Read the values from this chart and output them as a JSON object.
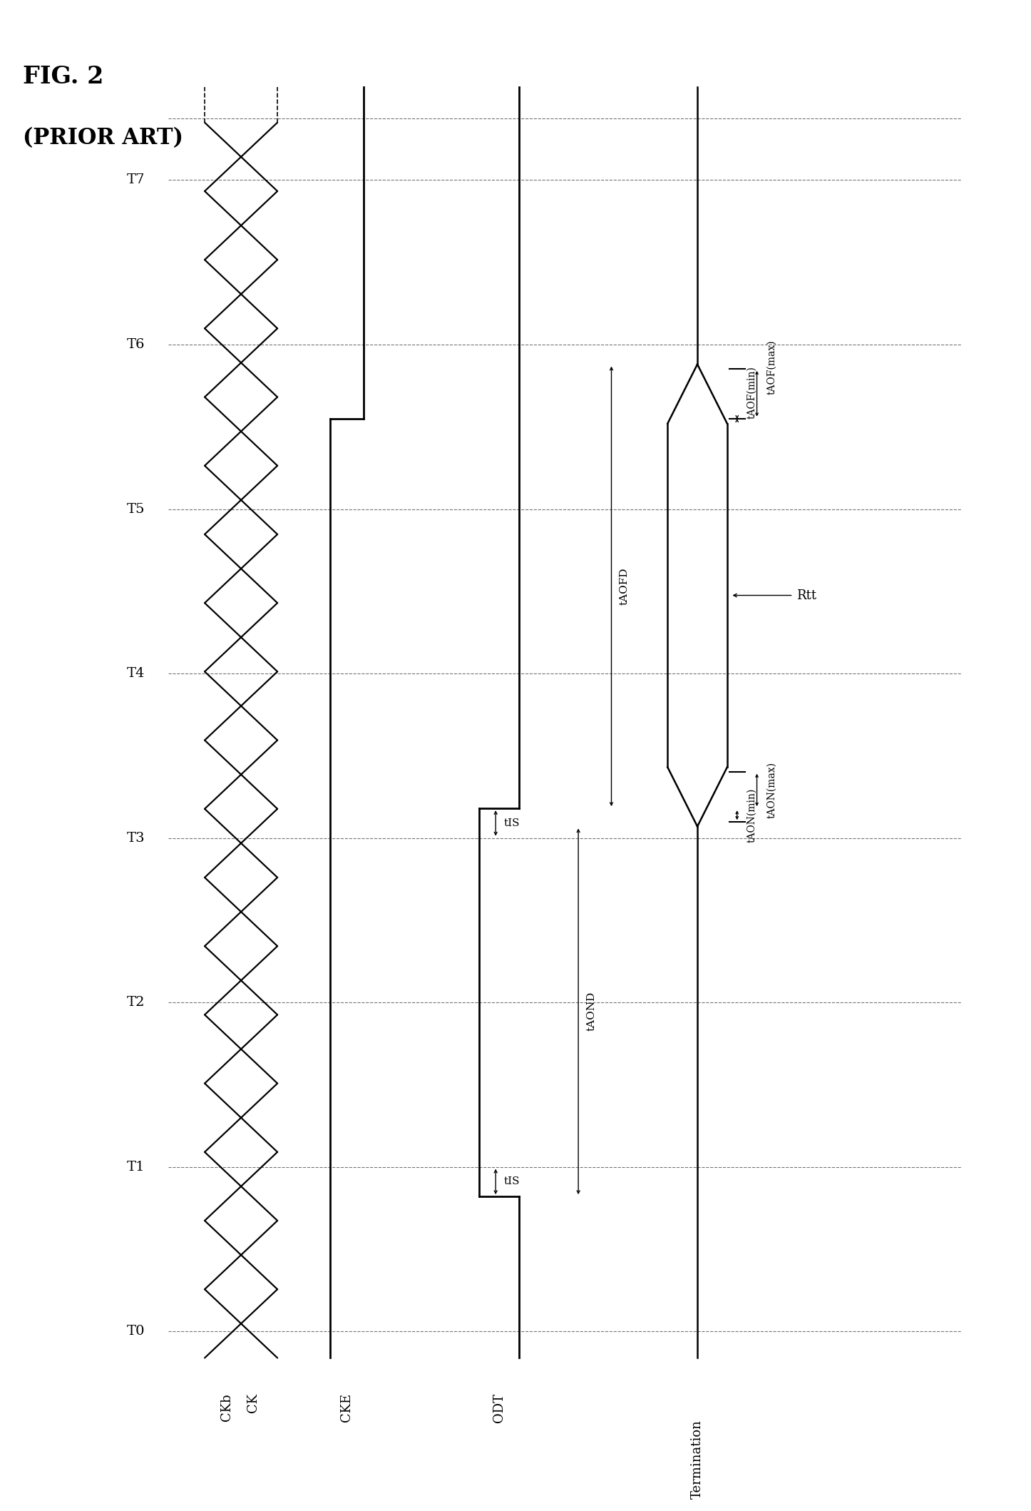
{
  "title_line1": "FIG. 2",
  "title_line2": "(PRIOR ART)",
  "background_color": "#ffffff",
  "signal_labels": [
    "CKb",
    "CK",
    "CKE",
    "ODT",
    "Termination"
  ],
  "time_labels": [
    "T0",
    "T1",
    "T2",
    "T3",
    "T4",
    "T5",
    "T6",
    "T7"
  ],
  "fig_width": 14.46,
  "fig_height": 21.18,
  "dpi": 100
}
